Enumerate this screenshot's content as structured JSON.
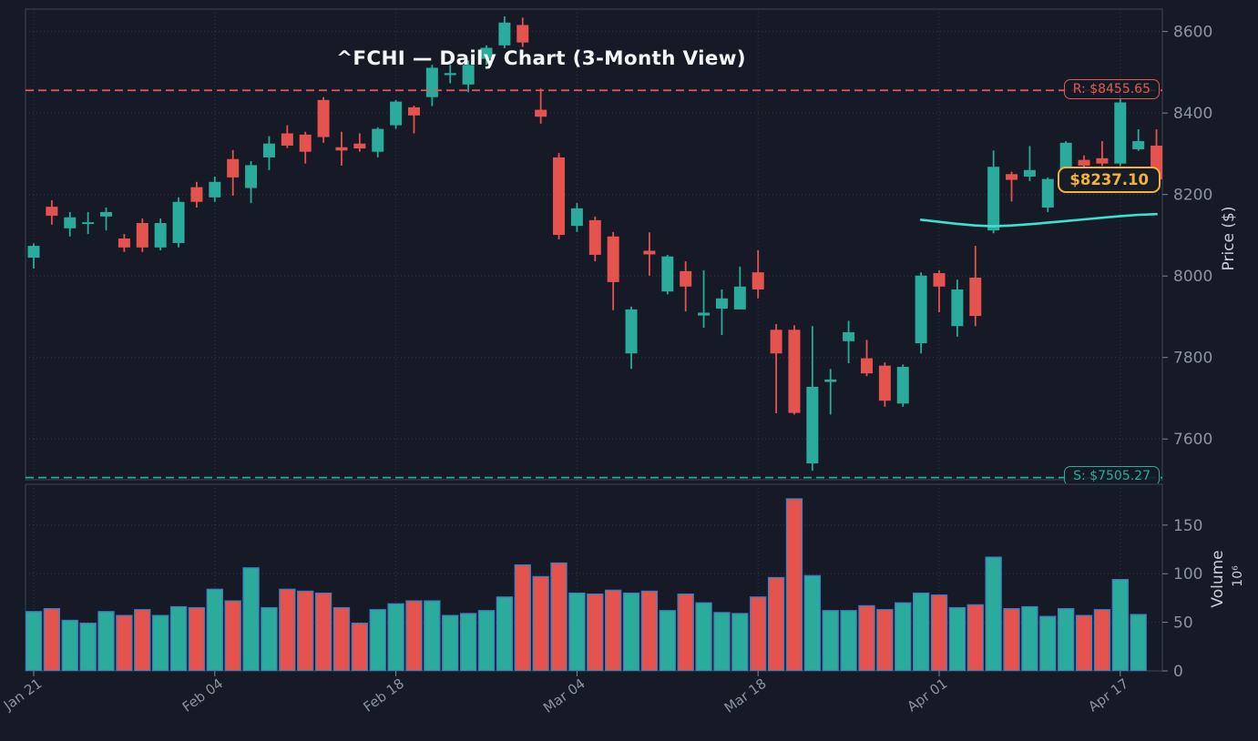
{
  "colors": {
    "background": "#151a26",
    "up": "#2bab9c",
    "down": "#e5534e",
    "volume_edge": "#3f7fc1",
    "resistance": "#e25a55",
    "support": "#2bab9c",
    "ma_line": "#3ce2d0",
    "last_price": "#f5b331",
    "tick_text": "#8b93a0",
    "axis_title_text": "#c9cdd6",
    "grid": "#394souh255",
    "spine": "#3c4454"
  },
  "chart_data": {
    "type": "candlestick+volume",
    "symbol": "^FCHI",
    "title": "^FCHI — Daily Chart (3-Month View)",
    "legend_position": "none",
    "grid": true,
    "x_axis": {
      "tick_labels": [
        "Jan 21",
        "Feb 04",
        "Feb 18",
        "Mar 04",
        "Mar 18",
        "Apr 01",
        "Apr 17"
      ],
      "tick_indices": [
        0,
        10,
        20,
        30,
        40,
        50,
        60
      ]
    },
    "price_axis": {
      "label": "Price ($)",
      "ticks": [
        7600,
        7800,
        8000,
        8200,
        8400,
        8600
      ],
      "range": [
        7500,
        8655
      ]
    },
    "volume_axis": {
      "label": "Volume",
      "scale_label": "10⁶",
      "ticks": [
        0,
        50,
        100,
        150
      ],
      "range": [
        0,
        192
      ]
    },
    "resistance": {
      "label": "R: $8455.65",
      "value": 8455.65
    },
    "support": {
      "label": "S: $7505.27",
      "value": 7505.27
    },
    "last_price": {
      "label": "$8237.10",
      "value": 8237.1
    },
    "ma_line": {
      "start_index": 49,
      "values": [
        8138,
        8133,
        8128,
        8124,
        8122,
        8124,
        8127,
        8131,
        8135,
        8139,
        8143,
        8147,
        8150,
        8152
      ]
    },
    "candles_format": [
      "open",
      "high",
      "low",
      "close",
      "volume_millions"
    ],
    "candles": [
      [
        8045,
        8080,
        8018,
        8074,
        61
      ],
      [
        8170,
        8186,
        8126,
        8148,
        64
      ],
      [
        8117,
        8157,
        8097,
        8144,
        52
      ],
      [
        8128,
        8157,
        8103,
        8132,
        49
      ],
      [
        8146,
        8168,
        8112,
        8157,
        61
      ],
      [
        8092,
        8103,
        8059,
        8070,
        57
      ],
      [
        8130,
        8141,
        8059,
        8070,
        63
      ],
      [
        8070,
        8141,
        8063,
        8130,
        57
      ],
      [
        8081,
        8193,
        8070,
        8182,
        66
      ],
      [
        8218,
        8231,
        8168,
        8182,
        65
      ],
      [
        8193,
        8244,
        8182,
        8231,
        84
      ],
      [
        8287,
        8309,
        8197,
        8242,
        72
      ],
      [
        8216,
        8282,
        8179,
        8272,
        106
      ],
      [
        8291,
        8343,
        8260,
        8325,
        65
      ],
      [
        8350,
        8370,
        8314,
        8320,
        84
      ],
      [
        8347,
        8354,
        8276,
        8305,
        82
      ],
      [
        8432,
        8439,
        8327,
        8341,
        80
      ],
      [
        8316,
        8354,
        8271,
        8308,
        65
      ],
      [
        8325,
        8350,
        8305,
        8313,
        49
      ],
      [
        8305,
        8365,
        8291,
        8361,
        63
      ],
      [
        8370,
        8432,
        8361,
        8428,
        69
      ],
      [
        8414,
        8418,
        8350,
        8394,
        72
      ],
      [
        8439,
        8518,
        8417,
        8511,
        72
      ],
      [
        8493,
        8518,
        8473,
        8498,
        57
      ],
      [
        8470,
        8529,
        8451,
        8518,
        59
      ],
      [
        8533,
        8566,
        8518,
        8560,
        62
      ],
      [
        8566,
        8637,
        8559,
        8622,
        76
      ],
      [
        8616,
        8634,
        8562,
        8573,
        109
      ],
      [
        8408,
        8460,
        8374,
        8391,
        97
      ],
      [
        8291,
        8302,
        8090,
        8101,
        111
      ],
      [
        8123,
        8179,
        8108,
        8166,
        80
      ],
      [
        8137,
        8146,
        8036,
        8052,
        79
      ],
      [
        8097,
        8108,
        7916,
        7985,
        83
      ],
      [
        7810,
        7925,
        7772,
        7918,
        80
      ],
      [
        8062,
        8107,
        8001,
        8053,
        82
      ],
      [
        7962,
        8052,
        7955,
        8048,
        62
      ],
      [
        8012,
        8036,
        7913,
        7974,
        79
      ],
      [
        7903,
        8014,
        7873,
        7910,
        70
      ],
      [
        7920,
        7967,
        7855,
        7945,
        60
      ],
      [
        7918,
        8023,
        7918,
        7974,
        59
      ],
      [
        8009,
        8063,
        7945,
        7967,
        76
      ],
      [
        7868,
        7882,
        7663,
        7810,
        96
      ],
      [
        7868,
        7879,
        7660,
        7664,
        177
      ],
      [
        7540,
        7877,
        7522,
        7728,
        98
      ],
      [
        7740,
        7772,
        7660,
        7746,
        62
      ],
      [
        7840,
        7890,
        7786,
        7862,
        62
      ],
      [
        7798,
        7843,
        7754,
        7761,
        67
      ],
      [
        7780,
        7788,
        7679,
        7694,
        63
      ],
      [
        7687,
        7783,
        7679,
        7777,
        70
      ],
      [
        7835,
        8009,
        7810,
        8001,
        80
      ],
      [
        8007,
        8014,
        7911,
        7974,
        78
      ],
      [
        7877,
        7991,
        7851,
        7967,
        65
      ],
      [
        7996,
        8074,
        7877,
        7902,
        68
      ],
      [
        8112,
        8308,
        8105,
        8268,
        117
      ],
      [
        8250,
        8256,
        8183,
        8236,
        64
      ],
      [
        8244,
        8319,
        8233,
        8260,
        66
      ],
      [
        8168,
        8242,
        8157,
        8238,
        56
      ],
      [
        8258,
        8331,
        8253,
        8327,
        64
      ],
      [
        8285,
        8296,
        8265,
        8271,
        57
      ],
      [
        8289,
        8331,
        8270,
        8276,
        63
      ],
      [
        8276,
        8445,
        8270,
        8426,
        94
      ],
      [
        8311,
        8360,
        8307,
        8331,
        58
      ],
      [
        8320,
        8360,
        8233,
        8237.1,
        null
      ]
    ]
  }
}
